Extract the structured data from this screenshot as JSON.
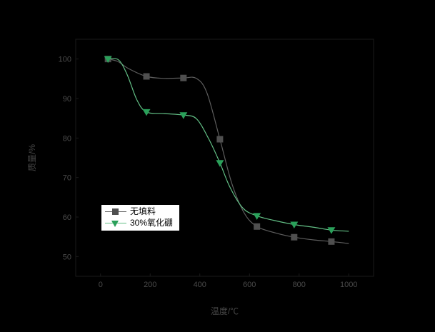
{
  "figure": {
    "background": "#000000"
  },
  "chart_data": {
    "type": "line",
    "title": "",
    "xlabel": "温度/℃",
    "ylabel": "质量/%",
    "xlim": [
      -100,
      1100
    ],
    "ylim": [
      45,
      105
    ],
    "x_ticks": [
      0,
      200,
      400,
      600,
      800,
      1000
    ],
    "y_ticks": [
      100,
      90,
      80,
      70,
      60,
      50
    ],
    "grid": false,
    "legend_position": "inside-center-left",
    "axis": {
      "tick_label_color": "#4a4a4a",
      "axis_label_color": "#464646",
      "spine_color": "#1a1a1a"
    },
    "series": [
      {
        "name": "无填料",
        "marker": "square",
        "marker_color": "#4f4f4f",
        "line_color": "#5e5e5e",
        "marker_x": [
          30,
          185,
          334,
          481,
          630,
          780,
          930
        ],
        "marker_y": [
          100,
          95.6,
          95.2,
          79.7,
          57.6,
          54.9,
          53.8
        ],
        "curve_x": [
          30,
          69,
          112,
          185,
          256,
          334,
          386,
          429,
          481,
          530,
          579,
          630,
          703,
          780,
          861,
          930,
          1000
        ],
        "curve_y": [
          100,
          99.4,
          97.6,
          95.6,
          95.1,
          95.2,
          95.1,
          91.4,
          79.7,
          68.3,
          61.0,
          57.6,
          56.0,
          54.9,
          54.2,
          53.8,
          53.3
        ]
      },
      {
        "name": "30%氧化硼",
        "marker": "triangle-down",
        "marker_color": "#2aa05a",
        "line_color": "#62bf85",
        "marker_x": [
          30,
          185,
          334,
          481,
          630,
          780,
          930
        ],
        "marker_y": [
          100,
          86.6,
          85.8,
          73.7,
          60.3,
          58.1,
          56.7
        ],
        "curve_x": [
          30,
          72,
          107,
          147,
          185,
          256,
          334,
          386,
          435,
          481,
          521,
          573,
          630,
          703,
          780,
          861,
          930,
          1000
        ],
        "curve_y": [
          100,
          99.8,
          96.1,
          89.6,
          86.6,
          86.2,
          85.8,
          84.9,
          79.9,
          73.7,
          67.6,
          62.3,
          60.3,
          59.1,
          58.1,
          57.4,
          56.7,
          56.4
        ]
      }
    ]
  }
}
